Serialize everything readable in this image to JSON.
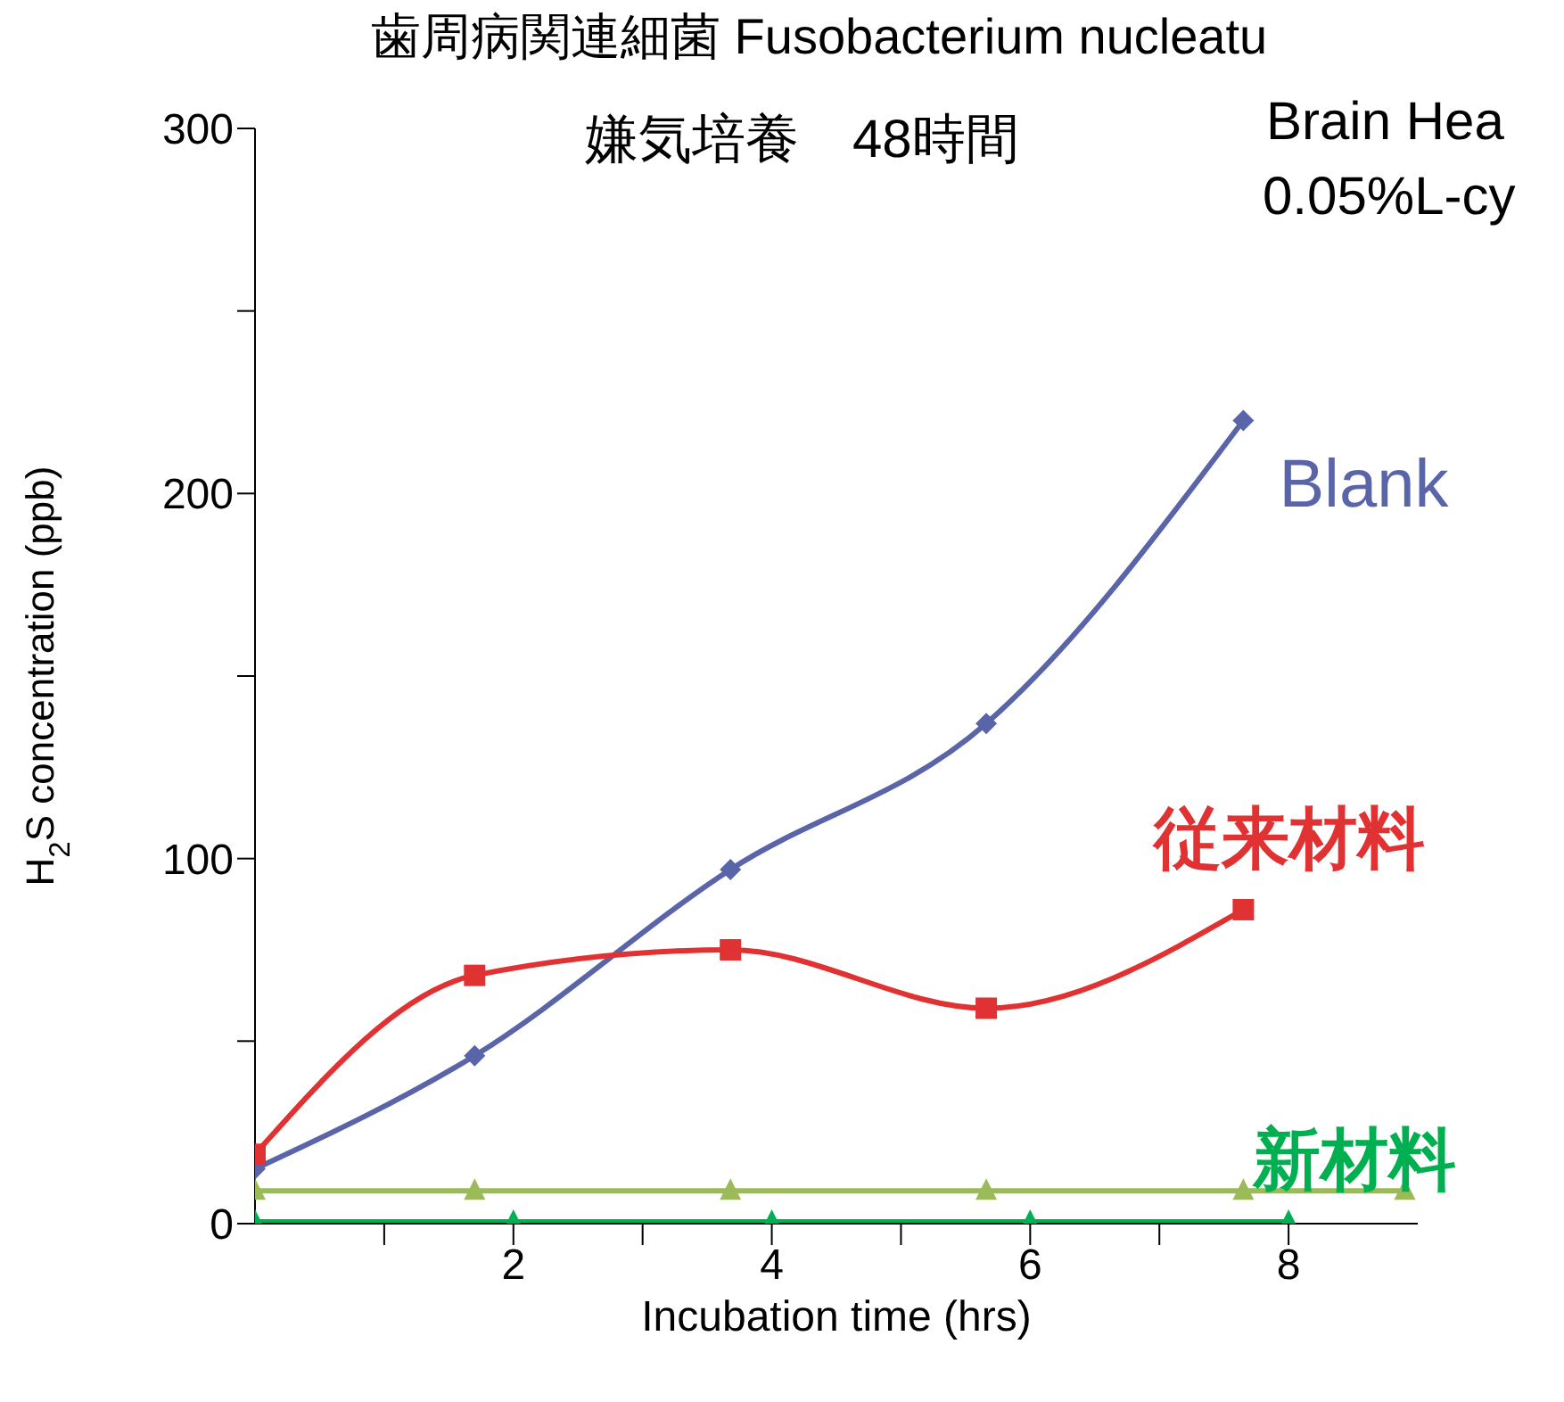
{
  "chart_data": {
    "type": "line",
    "title": "歯周病関連細菌 Fusobacterium nucleatu",
    "subtitle": "嫌気培養　48時間",
    "xlabel": "Incubation time (hrs)",
    "ylabel": "H$_{2}$S concentration (ppb)",
    "annotations": [
      "Brain Hea",
      "0.05%L-cy"
    ],
    "xlim": [
      0,
      9
    ],
    "xticks": [
      {
        "value": 1,
        "label": null
      },
      2,
      {
        "value": 3,
        "label": null
      },
      4,
      {
        "value": 5,
        "label": null
      },
      6,
      {
        "value": 7,
        "label": null
      },
      8
    ],
    "ylim": [
      0,
      300
    ],
    "yticks": [
      0,
      {
        "value": 50,
        "label": null
      },
      100,
      {
        "value": 150,
        "label": null
      },
      200,
      {
        "value": 250,
        "label": null
      },
      300
    ],
    "line_style": "solid",
    "series": [
      {
        "name": "Blank",
        "color": "#5a64a8",
        "marker": "diamond",
        "x": [
          0,
          1.7,
          3.68,
          5.66,
          7.65
        ],
        "values": [
          15,
          46,
          97,
          137,
          220
        ]
      },
      {
        "name": "従来材料",
        "color": "#e03232",
        "marker": "square",
        "x": [
          0,
          1.7,
          3.68,
          5.66,
          7.65
        ],
        "values": [
          19,
          68,
          75,
          59,
          86
        ]
      },
      {
        "color": "#9bbb59",
        "marker": "triangle",
        "x": [
          0,
          1.7,
          3.68,
          5.66,
          7.65,
          8.9
        ],
        "values": [
          9,
          9,
          9,
          9,
          9,
          9
        ]
      },
      {
        "name": "新材料",
        "color": "#00b050",
        "marker": "triangle",
        "x": [
          0,
          2,
          4,
          6,
          8
        ],
        "values": [
          0.5,
          0.5,
          0.5,
          0.5,
          0.5
        ]
      }
    ]
  }
}
